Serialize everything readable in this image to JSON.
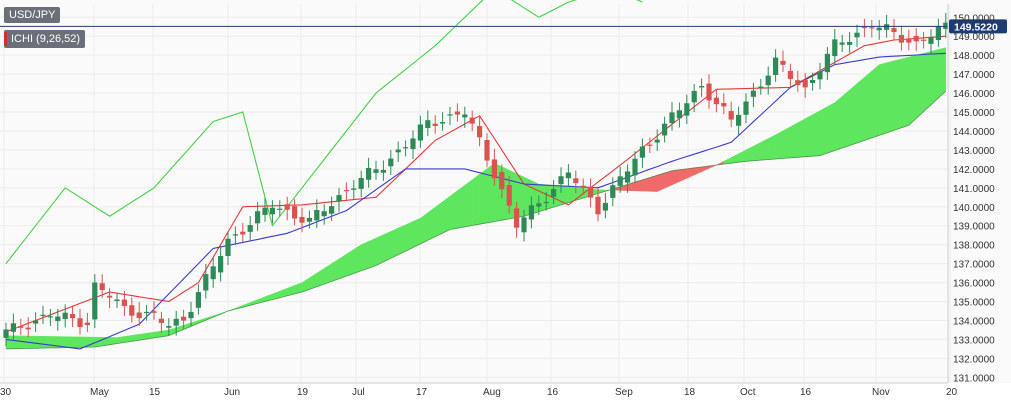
{
  "symbol": "USD/JPY",
  "indicator_label": "ICHI (9,26,52)",
  "colors": {
    "candle_up": "#2e8b57",
    "candle_down": "#d9534f",
    "tenkan": "#e53935",
    "kijun": "#3b3bd1",
    "chikou": "#43d143",
    "cloud_bull": "#5ee65e",
    "cloud_bear": "#f06a6a",
    "price_line": "#203a7a",
    "price_label_bg": "#1f3b73",
    "grid": "#ececec"
  },
  "chart_data": {
    "type": "candlestick",
    "title": "",
    "y_ticks": [
      "131.0000",
      "132.0000",
      "133.0000",
      "134.0000",
      "135.0000",
      "136.0000",
      "137.0000",
      "138.0000",
      "139.0000",
      "140.0000",
      "141.0000",
      "142.0000",
      "143.0000",
      "144.0000",
      "145.0000",
      "146.0000",
      "147.0000",
      "148.0000",
      "149.0000",
      "150.0000"
    ],
    "ylim": [
      130.7,
      150.7
    ],
    "x_ticks": [
      "30",
      "May",
      "15",
      "Jun",
      "19",
      "Jul",
      "17",
      "Aug",
      "16",
      "Sep",
      "18",
      "Oct",
      "16",
      "Nov",
      "20"
    ],
    "current_price": "149.5220",
    "grid": true
  }
}
